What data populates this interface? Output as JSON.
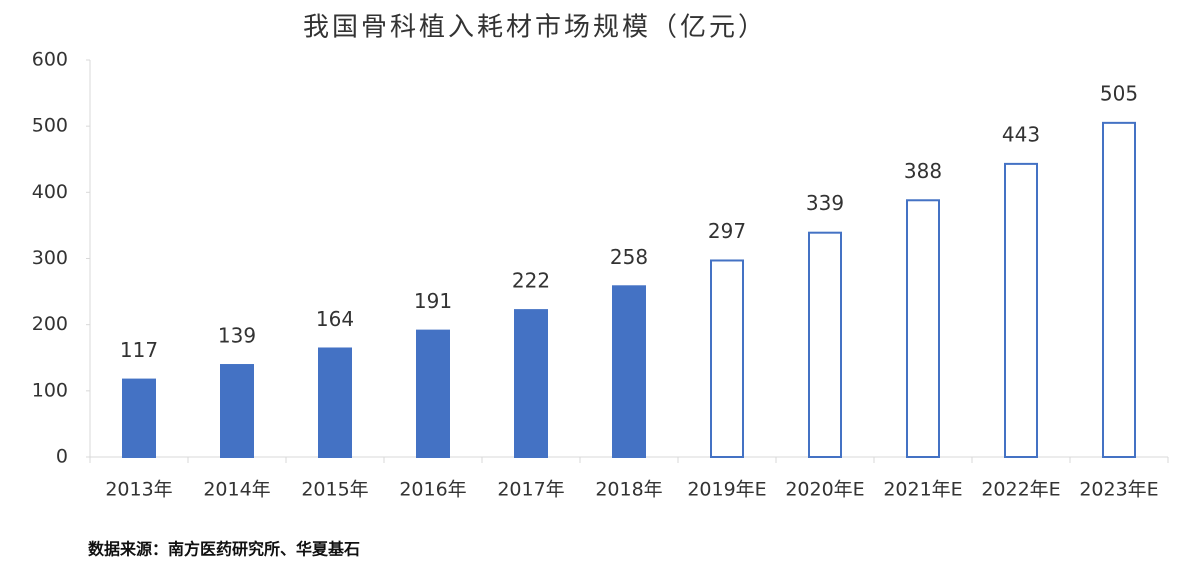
{
  "chart_data": {
    "type": "bar",
    "title": "我国骨科植入耗材市场规模（亿元）",
    "categories": [
      "2013年",
      "2014年",
      "2015年",
      "2016年",
      "2017年",
      "2018年",
      "2019年E",
      "2020年E",
      "2021年E",
      "2022年E",
      "2023年E"
    ],
    "values": [
      117,
      139,
      164,
      191,
      222,
      258,
      297,
      339,
      388,
      443,
      505
    ],
    "color": "#4472c4",
    "fills": [
      "#4472c4",
      "#4472c4",
      "#4472c4",
      "#4472c4",
      "#4472c4",
      "#4472c4",
      "#ffffff",
      "#ffffff",
      "#ffffff",
      "#ffffff",
      "#ffffff"
    ],
    "ylim": [
      0,
      600
    ],
    "yticks": [
      0,
      100,
      200,
      300,
      400,
      500,
      600
    ],
    "grid": false,
    "source": "数据来源：南方医药研究所、华夏基石"
  }
}
